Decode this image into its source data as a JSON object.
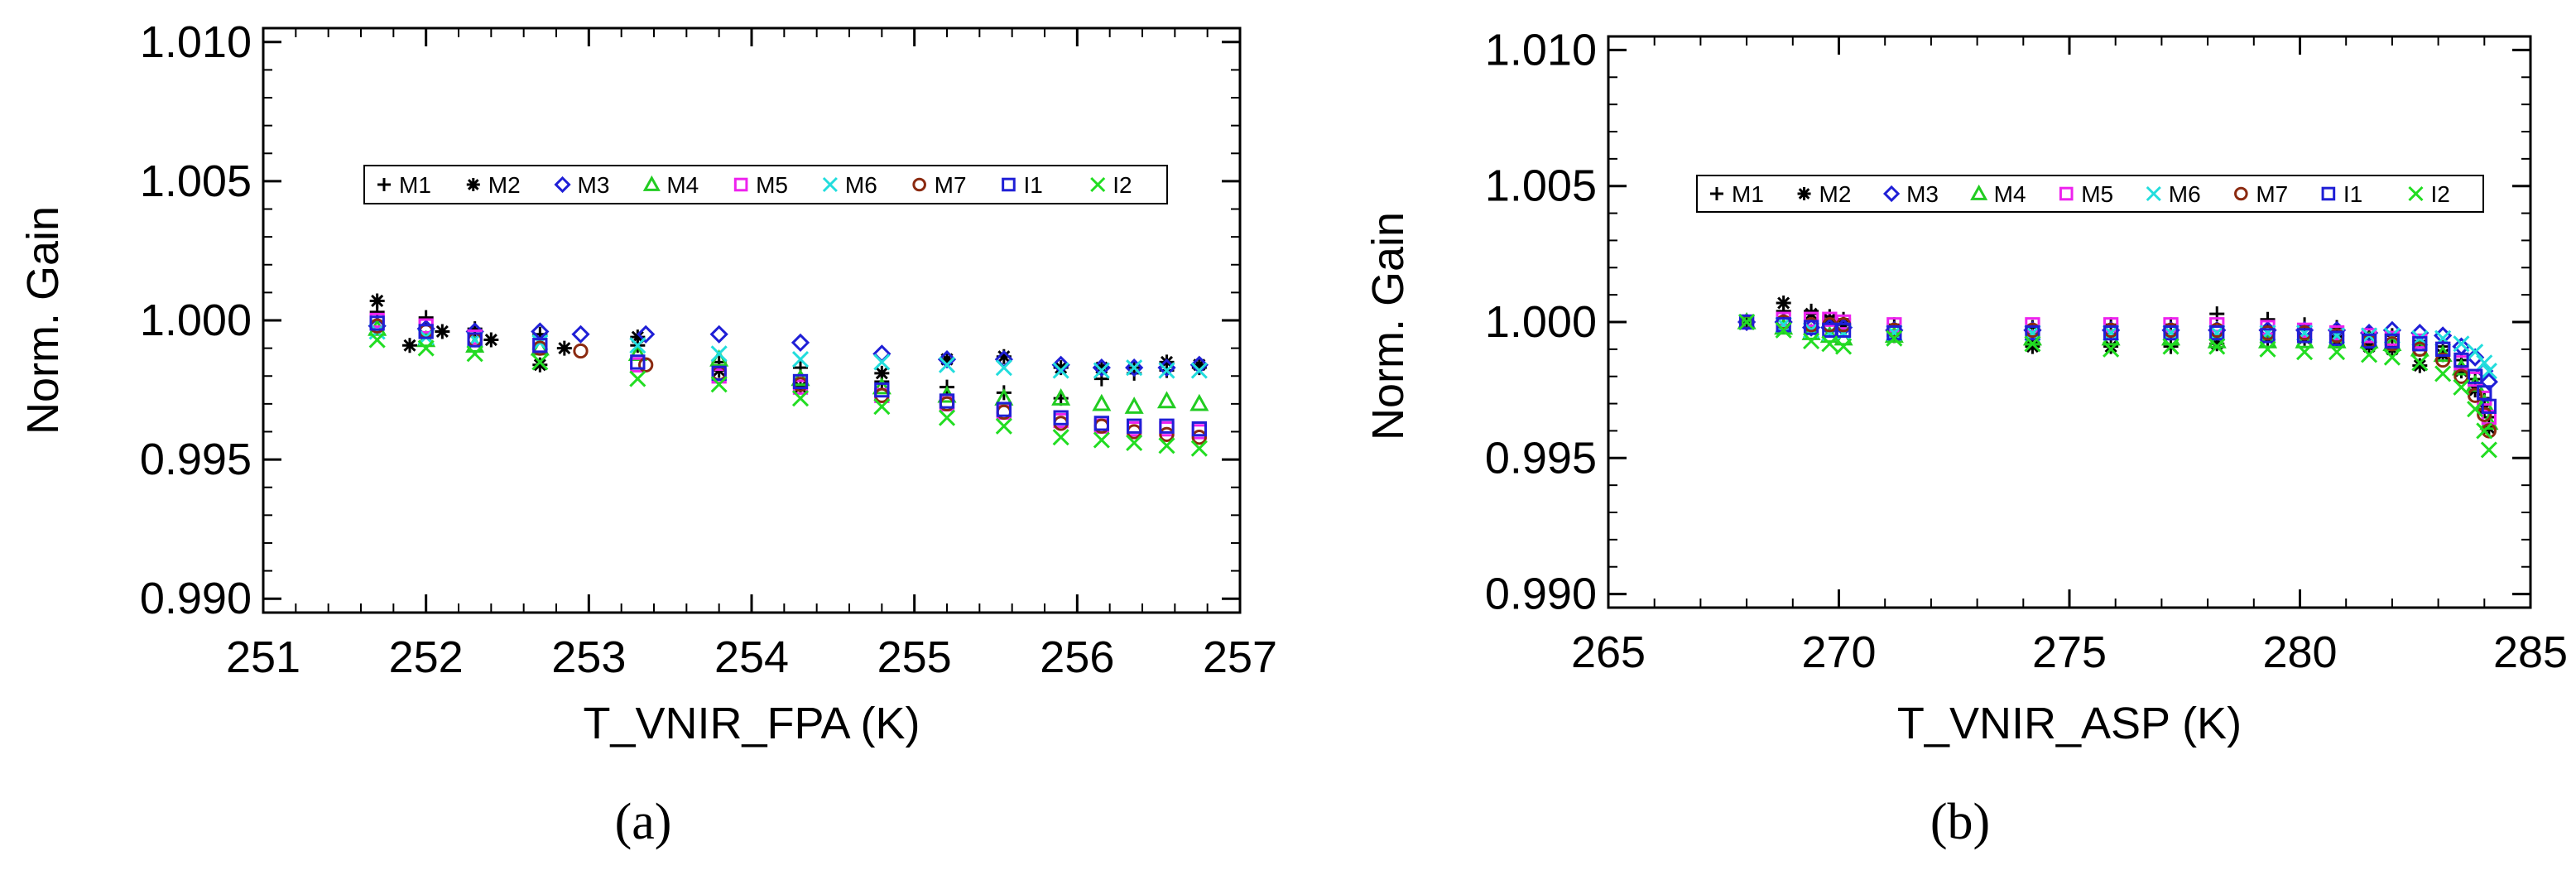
{
  "chart_data": [
    {
      "type": "scatter",
      "panel_label": "(a)",
      "xlabel": "T_VNIR_FPA (K)",
      "ylabel": "Norm. Gain",
      "xlim": [
        251,
        257
      ],
      "ylim": [
        0.9895,
        1.0105
      ],
      "xticks": [
        "251",
        "252",
        "253",
        "254",
        "255",
        "256",
        "257"
      ],
      "yticks": [
        "0.990",
        "0.995",
        "1.000",
        "1.005",
        "1.010"
      ],
      "legend_position": "upper-center",
      "series": [
        {
          "name": "M1",
          "marker": "plus",
          "color": "#000000",
          "x": [
            251.7,
            252.0,
            252.3,
            252.7,
            253.3,
            253.8,
            254.3,
            254.8,
            255.2,
            255.55,
            255.9,
            256.15,
            256.35,
            256.55,
            256.75
          ],
          "y": [
            1.0003,
            1.0001,
            0.9997,
            0.9995,
            0.9991,
            0.9985,
            0.9983,
            0.9978,
            0.9976,
            0.9974,
            0.9972,
            0.9979,
            0.9981,
            0.9982,
            0.9983
          ]
        },
        {
          "name": "M2",
          "marker": "asterisk",
          "color": "#000000",
          "x": [
            251.7,
            251.9,
            252.1,
            252.4,
            252.7,
            252.85,
            253.3,
            253.8,
            254.3,
            254.8,
            255.2,
            255.55,
            255.9,
            256.15,
            256.35,
            256.55,
            256.75
          ],
          "y": [
            1.0007,
            0.9991,
            0.9996,
            0.9993,
            0.9984,
            0.999,
            0.9994,
            0.9982,
            0.9976,
            0.9981,
            0.9986,
            0.9987,
            0.9983,
            0.9983,
            0.9983,
            0.9985,
            0.9984
          ]
        },
        {
          "name": "M3",
          "marker": "diamond",
          "color": "#1f1fd6",
          "x": [
            251.7,
            252.0,
            252.3,
            252.7,
            252.95,
            253.35,
            253.8,
            254.3,
            254.8,
            255.2,
            255.55,
            255.9,
            256.15,
            256.35,
            256.55,
            256.75
          ],
          "y": [
            0.9998,
            0.9997,
            0.9996,
            0.9996,
            0.9995,
            0.9995,
            0.9995,
            0.9992,
            0.9988,
            0.9986,
            0.9986,
            0.9984,
            0.9983,
            0.9983,
            0.9983,
            0.9984
          ]
        },
        {
          "name": "M4",
          "marker": "triangle",
          "color": "#22cc22",
          "x": [
            251.7,
            252.0,
            252.3,
            252.7,
            253.3,
            253.8,
            254.3,
            254.8,
            255.2,
            255.55,
            255.9,
            256.15,
            256.35,
            256.55,
            256.75
          ],
          "y": [
            0.9997,
            0.9993,
            0.9991,
            0.999,
            0.9988,
            0.9986,
            0.9979,
            0.9976,
            0.9973,
            0.9972,
            0.9972,
            0.997,
            0.9969,
            0.9971,
            0.997
          ]
        },
        {
          "name": "M5",
          "marker": "square",
          "color": "#ee22ee",
          "x": [
            251.7,
            252.0,
            252.3,
            252.7,
            253.3,
            253.8,
            254.3,
            254.8,
            255.2,
            255.55,
            255.9,
            256.15,
            256.35,
            256.55,
            256.75
          ],
          "y": [
            1.0,
            0.9998,
            0.9994,
            0.9991,
            0.9984,
            0.998,
            0.9976,
            0.9973,
            0.997,
            0.9967,
            0.9964,
            0.9962,
            0.9961,
            0.9961,
            0.996
          ]
        },
        {
          "name": "M6",
          "marker": "x",
          "color": "#22dddd",
          "x": [
            251.7,
            252.0,
            252.3,
            252.7,
            253.3,
            253.8,
            254.3,
            254.8,
            255.2,
            255.55,
            255.9,
            256.15,
            256.35,
            256.55,
            256.75
          ],
          "y": [
            0.9996,
            0.9994,
            0.9993,
            0.9992,
            0.9991,
            0.9988,
            0.9986,
            0.9985,
            0.9984,
            0.9983,
            0.9982,
            0.9982,
            0.9983,
            0.9982,
            0.9982
          ]
        },
        {
          "name": "M7",
          "marker": "circle",
          "color": "#8b2a10",
          "x": [
            251.7,
            252.0,
            252.3,
            252.7,
            252.95,
            253.35,
            253.8,
            254.3,
            254.8,
            255.2,
            255.55,
            255.9,
            256.15,
            256.35,
            256.55,
            256.75
          ],
          "y": [
            0.9998,
            0.9996,
            0.9993,
            0.999,
            0.9989,
            0.9984,
            0.9981,
            0.9977,
            0.9973,
            0.997,
            0.9967,
            0.9963,
            0.9962,
            0.996,
            0.9959,
            0.9958
          ]
        },
        {
          "name": "I1",
          "marker": "square",
          "color": "#1f1fd6",
          "x": [
            251.7,
            252.0,
            252.3,
            252.7,
            253.3,
            253.8,
            254.3,
            254.8,
            255.2,
            255.55,
            255.9,
            256.15,
            256.35,
            256.55,
            256.75
          ],
          "y": [
            0.9999,
            0.9996,
            0.9993,
            0.9991,
            0.9985,
            0.9981,
            0.9978,
            0.9975,
            0.9971,
            0.9968,
            0.9965,
            0.9963,
            0.9962,
            0.9962,
            0.9961
          ]
        },
        {
          "name": "I2",
          "marker": "x",
          "color": "#22dd22",
          "x": [
            251.7,
            252.0,
            252.3,
            252.7,
            253.3,
            253.8,
            254.3,
            254.8,
            255.2,
            255.55,
            255.9,
            256.15,
            256.35,
            256.55,
            256.75
          ],
          "y": [
            0.9993,
            0.999,
            0.9988,
            0.9985,
            0.9979,
            0.9977,
            0.9972,
            0.9969,
            0.9965,
            0.9962,
            0.9958,
            0.9957,
            0.9956,
            0.9955,
            0.9954
          ]
        }
      ]
    },
    {
      "type": "scatter",
      "panel_label": "(b)",
      "xlabel": "T_VNIR_ASP (K)",
      "ylabel": "Norm. Gain",
      "xlim": [
        265,
        285
      ],
      "ylim": [
        0.9895,
        1.0105
      ],
      "xticks": [
        "265",
        "270",
        "275",
        "280",
        "285"
      ],
      "yticks": [
        "0.990",
        "0.995",
        "1.000",
        "1.005",
        "1.010"
      ],
      "legend_position": "upper-center",
      "series": [
        {
          "name": "M1",
          "marker": "plus",
          "color": "#000000",
          "x": [
            268.0,
            268.8,
            269.4,
            269.8,
            270.1,
            271.2,
            274.2,
            275.9,
            277.2,
            278.2,
            279.3,
            280.1,
            280.8,
            281.5,
            282.0,
            282.6,
            283.1,
            283.5,
            283.8,
            284.0,
            284.1
          ],
          "y": [
            1.0,
            1.0004,
            1.0004,
            1.0002,
            1.0001,
            0.9999,
            0.9998,
            0.9999,
            0.9999,
            1.0003,
            1.0001,
            0.9999,
            0.9998,
            0.9996,
            0.9995,
            0.9993,
            0.9991,
            0.9986,
            0.9979,
            0.9972,
            0.9965
          ]
        },
        {
          "name": "M2",
          "marker": "asterisk",
          "color": "#000000",
          "x": [
            268.0,
            268.8,
            269.4,
            269.8,
            270.1,
            271.2,
            274.2,
            275.9,
            277.2,
            278.2,
            279.3,
            280.1,
            280.8,
            281.5,
            282.0,
            282.6,
            283.1,
            283.5,
            283.8,
            284.0,
            284.1
          ],
          "y": [
            1.0,
            1.0007,
            1.0003,
            1.0001,
            0.9999,
            0.9995,
            0.9991,
            0.9991,
            0.9991,
            0.9992,
            0.9994,
            0.9994,
            0.9993,
            0.9991,
            0.999,
            0.9984,
            0.9988,
            0.9982,
            0.9975,
            0.9968,
            0.9961
          ]
        },
        {
          "name": "M3",
          "marker": "diamond",
          "color": "#1f1fd6",
          "x": [
            268.0,
            268.8,
            269.4,
            269.8,
            270.1,
            271.2,
            274.2,
            275.9,
            277.2,
            278.2,
            279.3,
            280.1,
            280.8,
            281.5,
            282.0,
            282.6,
            283.1,
            283.5,
            283.8,
            284.0,
            284.1
          ],
          "y": [
            1.0,
            1.0,
            0.9998,
            0.9998,
            0.9998,
            0.9997,
            0.9997,
            0.9997,
            0.9997,
            0.9997,
            0.9997,
            0.9997,
            0.9997,
            0.9996,
            0.9997,
            0.9996,
            0.9995,
            0.9991,
            0.9987,
            0.9982,
            0.9978
          ]
        },
        {
          "name": "M4",
          "marker": "triangle",
          "color": "#22cc22",
          "x": [
            268.0,
            268.8,
            269.4,
            269.8,
            270.1,
            271.2,
            274.2,
            275.9,
            277.2,
            278.2,
            279.3,
            280.1,
            280.8,
            281.5,
            282.0,
            282.6,
            283.1,
            283.5,
            283.8,
            284.0,
            284.1
          ],
          "y": [
            1.0,
            0.9998,
            0.9996,
            0.9995,
            0.9994,
            0.9995,
            0.9994,
            0.9994,
            0.9994,
            0.9993,
            0.9993,
            0.9993,
            0.9993,
            0.9993,
            0.9992,
            0.999,
            0.9988,
            0.9983,
            0.9977,
            0.997,
            0.9963
          ]
        },
        {
          "name": "M5",
          "marker": "square",
          "color": "#ee22ee",
          "x": [
            268.0,
            268.8,
            269.4,
            269.8,
            270.1,
            271.2,
            274.2,
            275.9,
            277.2,
            278.2,
            279.3,
            280.1,
            280.8,
            281.5,
            282.0,
            282.6,
            283.1,
            283.5,
            283.8,
            284.0,
            284.1
          ],
          "y": [
            1.0,
            1.0001,
            1.0001,
            1.0001,
            1.0,
            0.9999,
            0.9999,
            0.9999,
            0.9999,
            0.9999,
            0.9998,
            0.9997,
            0.9996,
            0.9995,
            0.9994,
            0.9993,
            0.999,
            0.9985,
            0.9979,
            0.9972,
            0.9965
          ]
        },
        {
          "name": "M6",
          "marker": "x",
          "color": "#22dddd",
          "x": [
            268.0,
            268.8,
            269.4,
            269.8,
            270.1,
            271.2,
            274.2,
            275.9,
            277.2,
            278.2,
            279.3,
            280.1,
            280.8,
            281.5,
            282.0,
            282.6,
            283.1,
            283.5,
            283.8,
            284.0,
            284.1
          ],
          "y": [
            1.0,
            0.9999,
            0.9997,
            0.9996,
            0.9996,
            0.9996,
            0.9996,
            0.9996,
            0.9996,
            0.9996,
            0.9996,
            0.9996,
            0.9995,
            0.9995,
            0.9995,
            0.9994,
            0.9994,
            0.9992,
            0.9989,
            0.9985,
            0.9982
          ]
        },
        {
          "name": "M7",
          "marker": "circle",
          "color": "#8b2a10",
          "x": [
            268.0,
            268.8,
            269.4,
            269.8,
            270.1,
            271.2,
            274.2,
            275.9,
            277.2,
            278.2,
            279.3,
            280.1,
            280.8,
            281.5,
            282.0,
            282.6,
            283.1,
            283.5,
            283.8,
            284.0,
            284.1
          ],
          "y": [
            1.0,
            1.0,
            0.9999,
            0.9999,
            0.9999,
            0.9997,
            0.9997,
            0.9997,
            0.9997,
            0.9997,
            0.9996,
            0.9996,
            0.9995,
            0.9993,
            0.9992,
            0.999,
            0.9986,
            0.998,
            0.9973,
            0.9966,
            0.996
          ]
        },
        {
          "name": "I1",
          "marker": "square",
          "color": "#1f1fd6",
          "x": [
            268.0,
            268.8,
            269.4,
            269.8,
            270.1,
            271.2,
            274.2,
            275.9,
            277.2,
            278.2,
            279.3,
            280.1,
            280.8,
            281.5,
            282.0,
            282.6,
            283.1,
            283.5,
            283.8,
            284.0,
            284.1
          ],
          "y": [
            1.0,
            0.9999,
            0.9998,
            0.9997,
            0.9997,
            0.9996,
            0.9996,
            0.9996,
            0.9996,
            0.9996,
            0.9995,
            0.9995,
            0.9994,
            0.9993,
            0.9993,
            0.9992,
            0.999,
            0.9986,
            0.998,
            0.9974,
            0.9969
          ]
        },
        {
          "name": "I2",
          "marker": "x",
          "color": "#22dd22",
          "x": [
            268.0,
            268.8,
            269.4,
            269.8,
            270.1,
            271.2,
            274.2,
            275.9,
            277.2,
            278.2,
            279.3,
            280.1,
            280.8,
            281.5,
            282.0,
            282.6,
            283.1,
            283.5,
            283.8,
            284.0,
            284.1
          ],
          "y": [
            1.0,
            0.9997,
            0.9993,
            0.9992,
            0.9991,
            0.9994,
            0.9992,
            0.999,
            0.9991,
            0.9991,
            0.999,
            0.9989,
            0.9989,
            0.9988,
            0.9987,
            0.9985,
            0.9981,
            0.9976,
            0.9968,
            0.996,
            0.9953
          ]
        }
      ]
    }
  ]
}
